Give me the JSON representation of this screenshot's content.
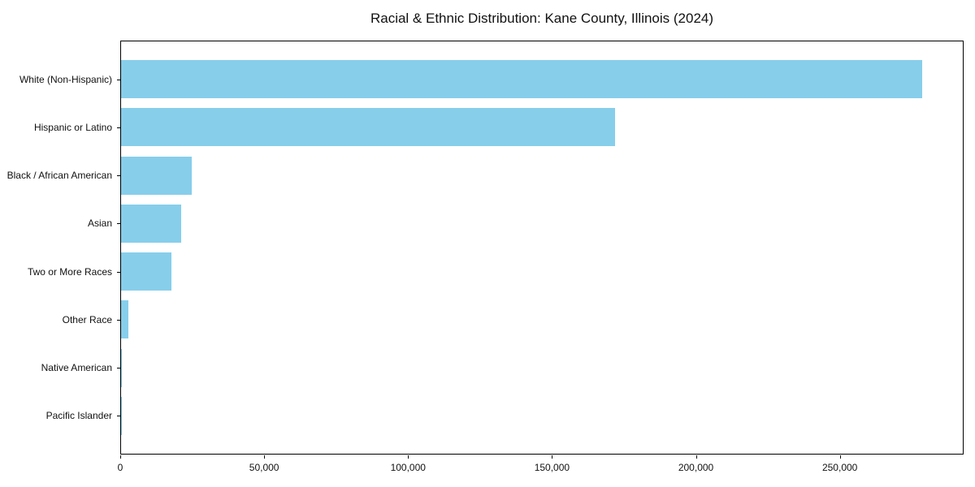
{
  "chart_data": {
    "type": "bar",
    "orientation": "horizontal",
    "title": "Racial & Ethnic Distribution: Kane County, Illinois (2024)",
    "categories": [
      "White (Non-Hispanic)",
      "Hispanic or Latino",
      "Black / African American",
      "Asian",
      "Two or More Races",
      "Other Race",
      "Native American",
      "Pacific Islander"
    ],
    "values": [
      279000,
      172000,
      24600,
      21000,
      17600,
      2600,
      400,
      150
    ],
    "xlabel": "",
    "ylabel": "",
    "xlim": [
      0,
      293000
    ],
    "xticks": [
      {
        "value": 0,
        "label": "0"
      },
      {
        "value": 50000,
        "label": "50,000"
      },
      {
        "value": 100000,
        "label": "100,000"
      },
      {
        "value": 150000,
        "label": "150,000"
      },
      {
        "value": 200000,
        "label": "200,000"
      },
      {
        "value": 250000,
        "label": "250,000"
      }
    ],
    "bar_color": "#87ceeb",
    "grid": false,
    "legend_position": "none"
  }
}
